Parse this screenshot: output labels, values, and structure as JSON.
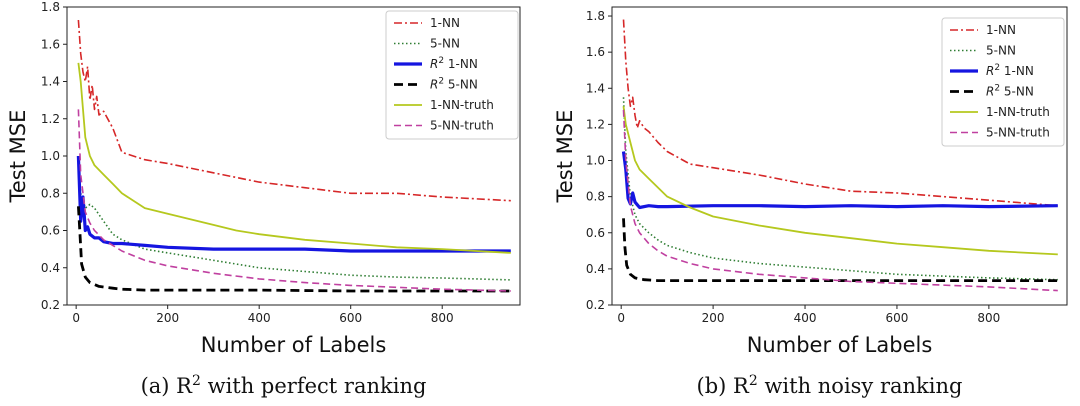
{
  "chart_data": [
    {
      "type": "line",
      "caption_prefix": "(a)",
      "caption_text": "R² with perfect ranking",
      "xlabel": "Number of Labels",
      "ylabel": "Test MSE",
      "xlim": [
        -20,
        970
      ],
      "ylim": [
        0.2,
        1.8
      ],
      "xticks": [
        0,
        200,
        400,
        600,
        800
      ],
      "yticks": [
        0.2,
        0.4,
        0.6,
        0.8,
        1.0,
        1.2,
        1.4,
        1.6,
        1.8
      ],
      "series": [
        {
          "name": "1-NN",
          "color": "#d62728",
          "dash": "8,3,2,3",
          "width": 1.6,
          "points": [
            [
              5,
              1.73
            ],
            [
              10,
              1.55
            ],
            [
              15,
              1.45
            ],
            [
              20,
              1.4
            ],
            [
              25,
              1.48
            ],
            [
              30,
              1.3
            ],
            [
              35,
              1.38
            ],
            [
              40,
              1.25
            ],
            [
              45,
              1.32
            ],
            [
              50,
              1.22
            ],
            [
              60,
              1.24
            ],
            [
              80,
              1.15
            ],
            [
              100,
              1.02
            ],
            [
              150,
              0.98
            ],
            [
              200,
              0.96
            ],
            [
              300,
              0.91
            ],
            [
              400,
              0.86
            ],
            [
              500,
              0.83
            ],
            [
              600,
              0.8
            ],
            [
              700,
              0.8
            ],
            [
              800,
              0.78
            ],
            [
              950,
              0.76
            ]
          ]
        },
        {
          "name": "5-NN",
          "color": "#2e7d32",
          "dash": "1.5,2.5",
          "width": 1.6,
          "points": [
            [
              5,
              0.95
            ],
            [
              10,
              0.8
            ],
            [
              20,
              0.72
            ],
            [
              30,
              0.74
            ],
            [
              40,
              0.72
            ],
            [
              60,
              0.65
            ],
            [
              80,
              0.58
            ],
            [
              100,
              0.55
            ],
            [
              150,
              0.5
            ],
            [
              200,
              0.48
            ],
            [
              300,
              0.44
            ],
            [
              400,
              0.4
            ],
            [
              500,
              0.38
            ],
            [
              600,
              0.36
            ],
            [
              700,
              0.35
            ],
            [
              800,
              0.345
            ],
            [
              950,
              0.335
            ]
          ]
        },
        {
          "name": "R² 1-NN",
          "color": "#1515e0",
          "dash": "",
          "width": 3.2,
          "points": [
            [
              5,
              1.0
            ],
            [
              10,
              0.65
            ],
            [
              15,
              0.78
            ],
            [
              20,
              0.6
            ],
            [
              25,
              0.62
            ],
            [
              30,
              0.58
            ],
            [
              40,
              0.56
            ],
            [
              50,
              0.56
            ],
            [
              60,
              0.54
            ],
            [
              80,
              0.53
            ],
            [
              100,
              0.53
            ],
            [
              150,
              0.52
            ],
            [
              200,
              0.51
            ],
            [
              300,
              0.5
            ],
            [
              400,
              0.5
            ],
            [
              500,
              0.5
            ],
            [
              600,
              0.49
            ],
            [
              700,
              0.49
            ],
            [
              800,
              0.49
            ],
            [
              950,
              0.49
            ]
          ]
        },
        {
          "name": "R² 5-NN",
          "color": "#000000",
          "dash": "9,5",
          "width": 2.8,
          "points": [
            [
              5,
              0.73
            ],
            [
              8,
              0.6
            ],
            [
              12,
              0.42
            ],
            [
              20,
              0.35
            ],
            [
              30,
              0.32
            ],
            [
              50,
              0.3
            ],
            [
              80,
              0.29
            ],
            [
              100,
              0.285
            ],
            [
              150,
              0.28
            ],
            [
              200,
              0.28
            ],
            [
              400,
              0.28
            ],
            [
              600,
              0.275
            ],
            [
              800,
              0.275
            ],
            [
              950,
              0.275
            ]
          ]
        },
        {
          "name": "1-NN-truth",
          "color": "#b5c81e",
          "dash": "",
          "width": 1.8,
          "points": [
            [
              5,
              1.5
            ],
            [
              10,
              1.4
            ],
            [
              15,
              1.25
            ],
            [
              20,
              1.1
            ],
            [
              30,
              1.0
            ],
            [
              40,
              0.95
            ],
            [
              60,
              0.9
            ],
            [
              80,
              0.85
            ],
            [
              100,
              0.8
            ],
            [
              150,
              0.72
            ],
            [
              200,
              0.69
            ],
            [
              300,
              0.63
            ],
            [
              350,
              0.6
            ],
            [
              400,
              0.58
            ],
            [
              500,
              0.55
            ],
            [
              600,
              0.53
            ],
            [
              700,
              0.51
            ],
            [
              800,
              0.5
            ],
            [
              950,
              0.48
            ]
          ]
        },
        {
          "name": "5-NN-truth",
          "color": "#c040a0",
          "dash": "7,4",
          "width": 1.6,
          "points": [
            [
              5,
              1.25
            ],
            [
              10,
              0.9
            ],
            [
              20,
              0.7
            ],
            [
              30,
              0.64
            ],
            [
              40,
              0.6
            ],
            [
              60,
              0.55
            ],
            [
              80,
              0.52
            ],
            [
              100,
              0.49
            ],
            [
              150,
              0.44
            ],
            [
              200,
              0.41
            ],
            [
              300,
              0.37
            ],
            [
              400,
              0.34
            ],
            [
              500,
              0.32
            ],
            [
              600,
              0.305
            ],
            [
              700,
              0.295
            ],
            [
              800,
              0.285
            ],
            [
              950,
              0.275
            ]
          ]
        }
      ]
    },
    {
      "type": "line",
      "caption_prefix": "(b)",
      "caption_text": "R² with noisy ranking",
      "xlabel": "Number of Labels",
      "ylabel": "Test MSE",
      "xlim": [
        -20,
        970
      ],
      "ylim": [
        0.2,
        1.85
      ],
      "xticks": [
        0,
        200,
        400,
        600,
        800
      ],
      "yticks": [
        0.2,
        0.4,
        0.6,
        0.8,
        1.0,
        1.2,
        1.4,
        1.6,
        1.8
      ],
      "series": [
        {
          "name": "1-NN",
          "color": "#d62728",
          "dash": "8,3,2,3",
          "width": 1.6,
          "points": [
            [
              5,
              1.78
            ],
            [
              10,
              1.55
            ],
            [
              15,
              1.4
            ],
            [
              20,
              1.3
            ],
            [
              25,
              1.35
            ],
            [
              30,
              1.25
            ],
            [
              35,
              1.18
            ],
            [
              40,
              1.22
            ],
            [
              50,
              1.18
            ],
            [
              60,
              1.16
            ],
            [
              80,
              1.1
            ],
            [
              100,
              1.05
            ],
            [
              150,
              0.98
            ],
            [
              200,
              0.96
            ],
            [
              300,
              0.92
            ],
            [
              400,
              0.87
            ],
            [
              500,
              0.83
            ],
            [
              600,
              0.82
            ],
            [
              700,
              0.8
            ],
            [
              800,
              0.78
            ],
            [
              950,
              0.75
            ]
          ]
        },
        {
          "name": "5-NN",
          "color": "#2e7d32",
          "dash": "1.5,2.5",
          "width": 1.6,
          "points": [
            [
              5,
              1.35
            ],
            [
              10,
              1.05
            ],
            [
              20,
              0.8
            ],
            [
              30,
              0.7
            ],
            [
              40,
              0.65
            ],
            [
              60,
              0.6
            ],
            [
              80,
              0.56
            ],
            [
              100,
              0.53
            ],
            [
              150,
              0.49
            ],
            [
              200,
              0.46
            ],
            [
              300,
              0.43
            ],
            [
              400,
              0.41
            ],
            [
              500,
              0.39
            ],
            [
              600,
              0.37
            ],
            [
              700,
              0.36
            ],
            [
              800,
              0.35
            ],
            [
              950,
              0.34
            ]
          ]
        },
        {
          "name": "R² 1-NN",
          "color": "#1515e0",
          "dash": "",
          "width": 3.2,
          "points": [
            [
              5,
              1.05
            ],
            [
              10,
              0.95
            ],
            [
              15,
              0.79
            ],
            [
              20,
              0.76
            ],
            [
              25,
              0.82
            ],
            [
              30,
              0.77
            ],
            [
              40,
              0.74
            ],
            [
              60,
              0.75
            ],
            [
              80,
              0.745
            ],
            [
              100,
              0.745
            ],
            [
              200,
              0.75
            ],
            [
              300,
              0.75
            ],
            [
              400,
              0.745
            ],
            [
              500,
              0.75
            ],
            [
              600,
              0.745
            ],
            [
              700,
              0.75
            ],
            [
              800,
              0.745
            ],
            [
              950,
              0.75
            ]
          ]
        },
        {
          "name": "R² 5-NN",
          "color": "#000000",
          "dash": "9,5",
          "width": 2.8,
          "points": [
            [
              5,
              0.68
            ],
            [
              8,
              0.52
            ],
            [
              12,
              0.42
            ],
            [
              20,
              0.37
            ],
            [
              30,
              0.35
            ],
            [
              50,
              0.34
            ],
            [
              80,
              0.335
            ],
            [
              100,
              0.335
            ],
            [
              200,
              0.335
            ],
            [
              400,
              0.335
            ],
            [
              600,
              0.335
            ],
            [
              800,
              0.335
            ],
            [
              950,
              0.335
            ]
          ]
        },
        {
          "name": "1-NN-truth",
          "color": "#b5c81e",
          "dash": "",
          "width": 1.8,
          "points": [
            [
              5,
              1.3
            ],
            [
              10,
              1.2
            ],
            [
              15,
              1.15
            ],
            [
              20,
              1.1
            ],
            [
              30,
              1.0
            ],
            [
              40,
              0.95
            ],
            [
              60,
              0.9
            ],
            [
              80,
              0.85
            ],
            [
              100,
              0.8
            ],
            [
              150,
              0.74
            ],
            [
              200,
              0.69
            ],
            [
              300,
              0.64
            ],
            [
              400,
              0.6
            ],
            [
              500,
              0.57
            ],
            [
              600,
              0.54
            ],
            [
              700,
              0.52
            ],
            [
              800,
              0.5
            ],
            [
              950,
              0.48
            ]
          ]
        },
        {
          "name": "5-NN-truth",
          "color": "#c040a0",
          "dash": "7,4",
          "width": 1.6,
          "points": [
            [
              5,
              1.28
            ],
            [
              10,
              1.0
            ],
            [
              20,
              0.75
            ],
            [
              30,
              0.65
            ],
            [
              40,
              0.6
            ],
            [
              60,
              0.54
            ],
            [
              80,
              0.5
            ],
            [
              100,
              0.47
            ],
            [
              150,
              0.43
            ],
            [
              200,
              0.4
            ],
            [
              300,
              0.37
            ],
            [
              400,
              0.35
            ],
            [
              500,
              0.33
            ],
            [
              600,
              0.32
            ],
            [
              700,
              0.31
            ],
            [
              800,
              0.3
            ],
            [
              950,
              0.28
            ]
          ]
        }
      ]
    }
  ]
}
